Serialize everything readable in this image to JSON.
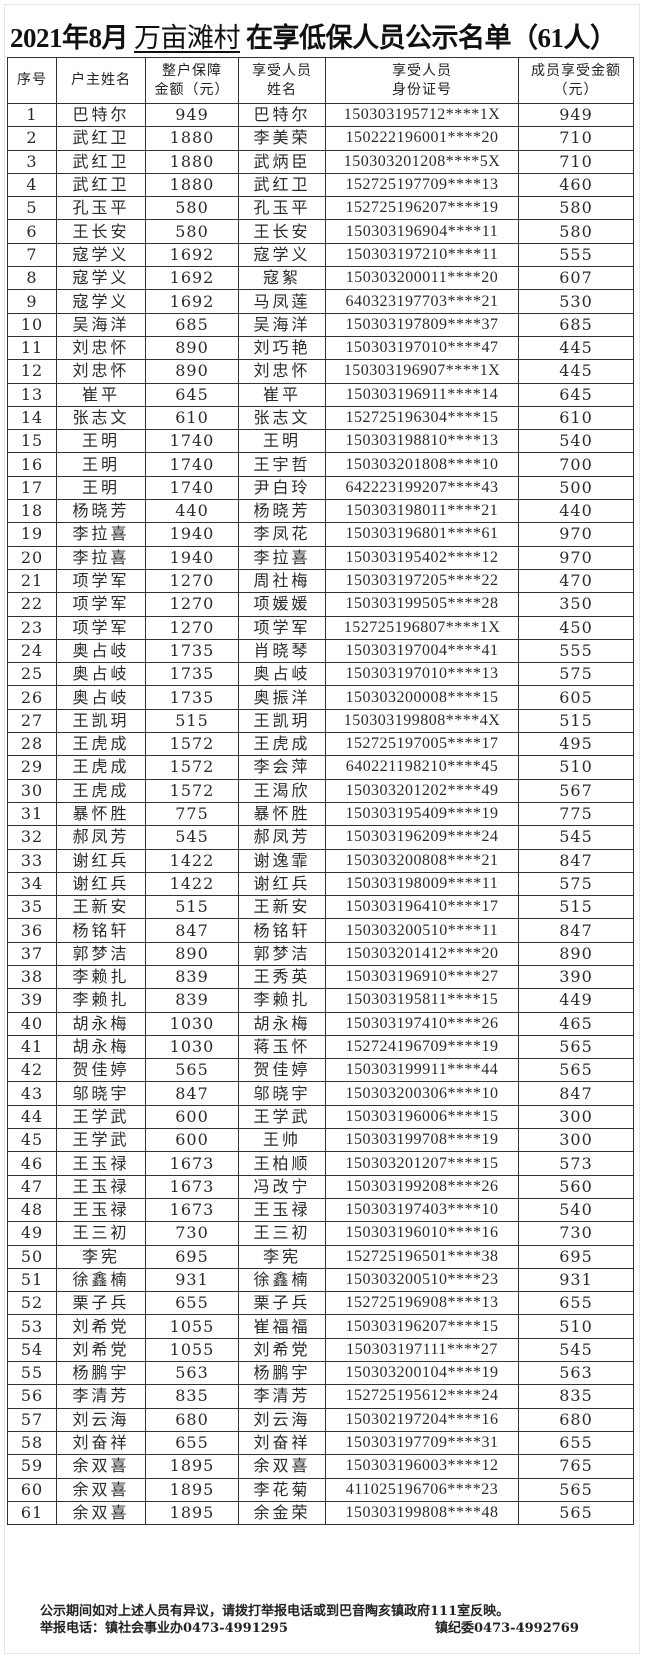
{
  "title": {
    "prefix": "2021年8月",
    "village": "万亩滩村",
    "suffix": "在享低保人员公示名单（61人）"
  },
  "table": {
    "headers": [
      {
        "line1": "序号",
        "line2": ""
      },
      {
        "line1": "户主姓名",
        "line2": ""
      },
      {
        "line1": "整户保障",
        "line2": "金额（元）"
      },
      {
        "line1": "享受人员",
        "line2": "姓名"
      },
      {
        "line1": "享受人员",
        "line2": "身份证号"
      },
      {
        "line1": "成员享受金额",
        "line2": "（元）"
      }
    ],
    "rows": [
      [
        "1",
        "巴特尔",
        "949",
        "巴特尔",
        "150303195712****1X",
        "949"
      ],
      [
        "2",
        "武红卫",
        "1880",
        "李美荣",
        "150222196001****20",
        "710"
      ],
      [
        "3",
        "武红卫",
        "1880",
        "武炳臣",
        "150303201208****5X",
        "710"
      ],
      [
        "4",
        "武红卫",
        "1880",
        "武红卫",
        "152725197709****13",
        "460"
      ],
      [
        "5",
        "孔玉平",
        "580",
        "孔玉平",
        "152725196207****19",
        "580"
      ],
      [
        "6",
        "王长安",
        "580",
        "王长安",
        "150303196904****11",
        "580"
      ],
      [
        "7",
        "寇学义",
        "1692",
        "寇学义",
        "150303197210****11",
        "555"
      ],
      [
        "8",
        "寇学义",
        "1692",
        "寇絮",
        "150303200011****20",
        "607"
      ],
      [
        "9",
        "寇学义",
        "1692",
        "马凤莲",
        "640323197703****21",
        "530"
      ],
      [
        "10",
        "吴海洋",
        "685",
        "吴海洋",
        "150303197809****37",
        "685"
      ],
      [
        "11",
        "刘忠怀",
        "890",
        "刘巧艳",
        "150303197010****47",
        "445"
      ],
      [
        "12",
        "刘忠怀",
        "890",
        "刘忠怀",
        "150303196907****1X",
        "445"
      ],
      [
        "13",
        "崔平",
        "645",
        "崔平",
        "150303196911****14",
        "645"
      ],
      [
        "14",
        "张志文",
        "610",
        "张志文",
        "152725196304****15",
        "610"
      ],
      [
        "15",
        "王明",
        "1740",
        "王明",
        "150303198810****13",
        "540"
      ],
      [
        "16",
        "王明",
        "1740",
        "王宇哲",
        "150303201808****10",
        "700"
      ],
      [
        "17",
        "王明",
        "1740",
        "尹白玲",
        "642223199207****43",
        "500"
      ],
      [
        "18",
        "杨晓芳",
        "440",
        "杨晓芳",
        "150303198011****21",
        "440"
      ],
      [
        "19",
        "李拉喜",
        "1940",
        "李凤花",
        "150303196801****61",
        "970"
      ],
      [
        "20",
        "李拉喜",
        "1940",
        "李拉喜",
        "150303195402****12",
        "970"
      ],
      [
        "21",
        "项学军",
        "1270",
        "周社梅",
        "150303197205****22",
        "470"
      ],
      [
        "22",
        "项学军",
        "1270",
        "项媛媛",
        "150303199505****28",
        "350"
      ],
      [
        "23",
        "项学军",
        "1270",
        "项学军",
        "152725196807****1X",
        "450"
      ],
      [
        "24",
        "奥占岐",
        "1735",
        "肖晓琴",
        "150303197004****41",
        "555"
      ],
      [
        "25",
        "奥占岐",
        "1735",
        "奥占岐",
        "150303197010****13",
        "575"
      ],
      [
        "26",
        "奥占岐",
        "1735",
        "奥振洋",
        "150303200008****15",
        "605"
      ],
      [
        "27",
        "王凯玥",
        "515",
        "王凯玥",
        "150303199808****4X",
        "515"
      ],
      [
        "28",
        "王虎成",
        "1572",
        "王虎成",
        "152725197005****17",
        "495"
      ],
      [
        "29",
        "王虎成",
        "1572",
        "李会萍",
        "640221198210****45",
        "510"
      ],
      [
        "30",
        "王虎成",
        "1572",
        "王渴欣",
        "150303201202****49",
        "567"
      ],
      [
        "31",
        "暴怀胜",
        "775",
        "暴怀胜",
        "150303195409****19",
        "775"
      ],
      [
        "32",
        "郝凤芳",
        "545",
        "郝凤芳",
        "150303196209****24",
        "545"
      ],
      [
        "33",
        "谢红兵",
        "1422",
        "谢逸霏",
        "150303200808****21",
        "847"
      ],
      [
        "34",
        "谢红兵",
        "1422",
        "谢红兵",
        "150303198009****11",
        "575"
      ],
      [
        "35",
        "王新安",
        "515",
        "王新安",
        "150303196410****17",
        "515"
      ],
      [
        "36",
        "杨铭轩",
        "847",
        "杨铭轩",
        "150303200510****11",
        "847"
      ],
      [
        "37",
        "郭梦洁",
        "890",
        "郭梦洁",
        "150303201412****20",
        "890"
      ],
      [
        "38",
        "李赖扎",
        "839",
        "王秀英",
        "150303196910****27",
        "390"
      ],
      [
        "39",
        "李赖扎",
        "839",
        "李赖扎",
        "150303195811****15",
        "449"
      ],
      [
        "40",
        "胡永梅",
        "1030",
        "胡永梅",
        "150303197410****26",
        "465"
      ],
      [
        "41",
        "胡永梅",
        "1030",
        "蒋玉怀",
        "152724196709****19",
        "565"
      ],
      [
        "42",
        "贺佳婷",
        "565",
        "贺佳婷",
        "150303199911****44",
        "565"
      ],
      [
        "43",
        "邬晓宇",
        "847",
        "邬晓宇",
        "150303200306****10",
        "847"
      ],
      [
        "44",
        "王学武",
        "600",
        "王学武",
        "150303196006****15",
        "300"
      ],
      [
        "45",
        "王学武",
        "600",
        "王帅",
        "150303199708****19",
        "300"
      ],
      [
        "46",
        "王玉禄",
        "1673",
        "王柏顺",
        "150303201207****15",
        "573"
      ],
      [
        "47",
        "王玉禄",
        "1673",
        "冯改宁",
        "150303199208****26",
        "560"
      ],
      [
        "48",
        "王玉禄",
        "1673",
        "王玉禄",
        "150303197403****10",
        "540"
      ],
      [
        "49",
        "王三初",
        "730",
        "王三初",
        "150303196010****16",
        "730"
      ],
      [
        "50",
        "李宪",
        "695",
        "李宪",
        "152725196501****38",
        "695"
      ],
      [
        "51",
        "徐鑫楠",
        "931",
        "徐鑫楠",
        "150303200510****23",
        "931"
      ],
      [
        "52",
        "栗子兵",
        "655",
        "栗子兵",
        "152725196908****13",
        "655"
      ],
      [
        "53",
        "刘希党",
        "1055",
        "崔福福",
        "150303196207****15",
        "510"
      ],
      [
        "54",
        "刘希党",
        "1055",
        "刘希党",
        "150303197111****27",
        "545"
      ],
      [
        "55",
        "杨鹏宇",
        "563",
        "杨鹏宇",
        "150303200104****19",
        "563"
      ],
      [
        "56",
        "李清芳",
        "835",
        "李清芳",
        "152725195612****24",
        "835"
      ],
      [
        "57",
        "刘云海",
        "680",
        "刘云海",
        "150302197204****16",
        "680"
      ],
      [
        "58",
        "刘奋祥",
        "655",
        "刘奋祥",
        "150303197709****31",
        "655"
      ],
      [
        "59",
        "余双喜",
        "1895",
        "余双喜",
        "150303196003****12",
        "765"
      ],
      [
        "60",
        "余双喜",
        "1895",
        "李花菊",
        "411025196706****23",
        "565"
      ],
      [
        "61",
        "余双喜",
        "1895",
        "余金荣",
        "150303199808****48",
        "565"
      ]
    ]
  },
  "footer": {
    "notice": "公示期间如对上述人员有异议，请拨打举报电话或到巴音陶亥镇政府111室反映。",
    "phone1": "举报电话：镇社会事业办0473-4991295",
    "phone2": "镇纪委0473-4992769"
  }
}
